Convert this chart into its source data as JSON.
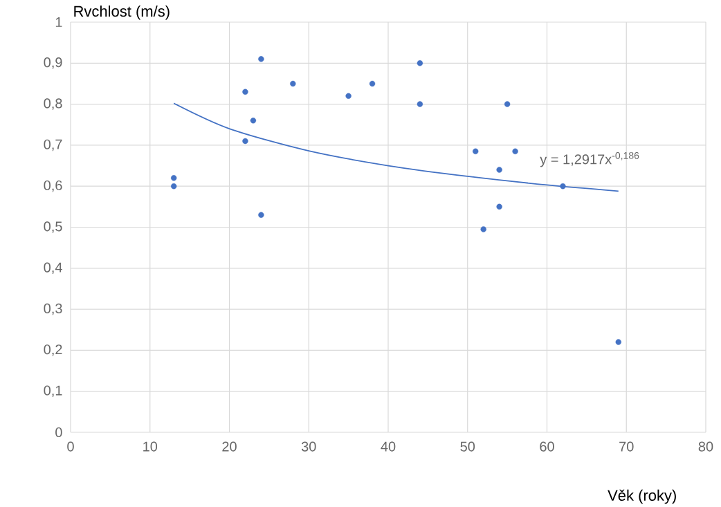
{
  "chart_data": {
    "type": "scatter",
    "xlabel": "Věk (roky)",
    "ylabel": "Rvchlost (m/s)",
    "xlim": [
      0,
      80
    ],
    "ylim": [
      0,
      1
    ],
    "xticks": [
      0,
      10,
      20,
      30,
      40,
      50,
      60,
      70,
      80
    ],
    "yticks": [
      {
        "value": 0,
        "label": "0"
      },
      {
        "value": 0.1,
        "label": "0,1"
      },
      {
        "value": 0.2,
        "label": "0,2"
      },
      {
        "value": 0.3,
        "label": "0,3"
      },
      {
        "value": 0.4,
        "label": "0,4"
      },
      {
        "value": 0.5,
        "label": "0,5"
      },
      {
        "value": 0.6,
        "label": "0,6"
      },
      {
        "value": 0.7,
        "label": "0,7"
      },
      {
        "value": 0.8,
        "label": "0,8"
      },
      {
        "value": 0.9,
        "label": "0,9"
      },
      {
        "value": 1,
        "label": "1"
      }
    ],
    "grid": true,
    "marker": "circle",
    "series": [
      {
        "color": "#4472c4",
        "x": [
          13,
          13,
          22,
          22,
          23,
          24,
          24,
          28,
          35,
          38,
          44,
          44,
          51,
          52,
          54,
          54,
          55,
          56,
          62,
          69
        ],
        "values": [
          0.62,
          0.6,
          0.83,
          0.71,
          0.76,
          0.91,
          0.53,
          0.85,
          0.82,
          0.85,
          0.9,
          0.8,
          0.685,
          0.495,
          0.64,
          0.55,
          0.8,
          0.685,
          0.6,
          0.22
        ]
      },
      {
        "type": "line",
        "marker": "none",
        "color": "#4472c4",
        "x": [
          13,
          20,
          30,
          40,
          50,
          60,
          69
        ],
        "values": [
          0.802,
          0.74,
          0.686,
          0.65,
          0.624,
          0.603,
          0.588
        ]
      }
    ],
    "annotations": [
      "y = 1,2917x$^{-0,186}$"
    ]
  }
}
